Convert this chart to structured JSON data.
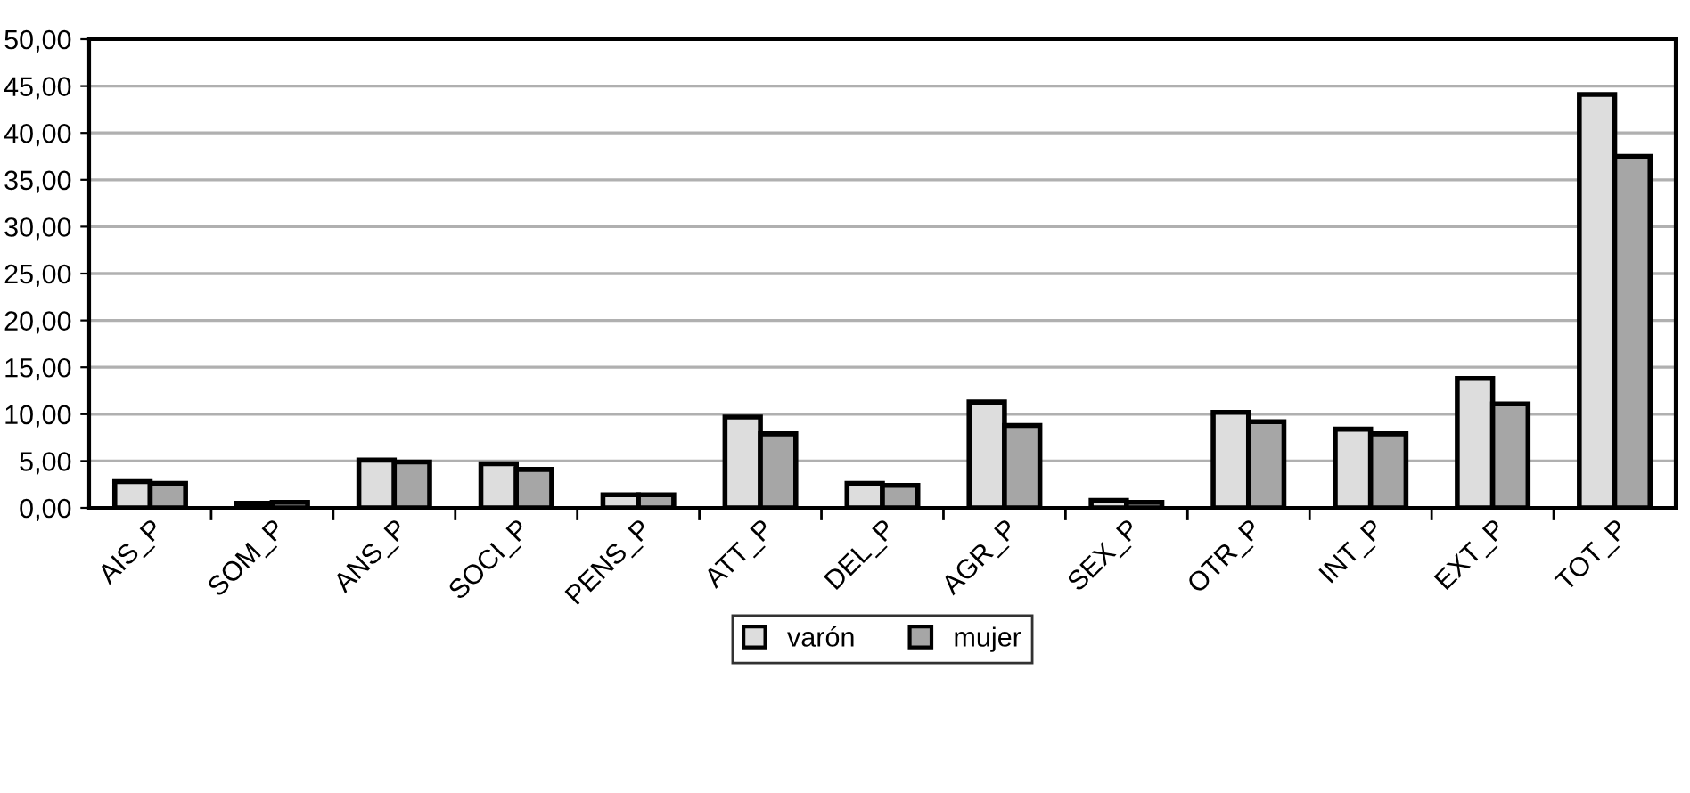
{
  "chart_data": {
    "type": "bar",
    "categories": [
      "AIS_P",
      "SOM_P",
      "ANS_P",
      "SOCI_P",
      "PENS_P",
      "ATT_P",
      "DEL_P",
      "AGR_P",
      "SEX_P",
      "OTR_P",
      "INT_P",
      "EXT_P",
      "TOT_P"
    ],
    "series": [
      {
        "name": "varón",
        "color": "#dddddd",
        "values": [
          2.8,
          0.5,
          5.1,
          4.7,
          1.4,
          9.7,
          2.6,
          11.3,
          0.8,
          10.2,
          8.4,
          13.8,
          44.1
        ]
      },
      {
        "name": "mujer",
        "color": "#a6a6a6",
        "values": [
          2.6,
          0.6,
          4.9,
          4.1,
          1.4,
          7.9,
          2.4,
          8.8,
          0.6,
          9.2,
          7.9,
          11.1,
          37.5
        ]
      }
    ],
    "ylim": [
      0,
      50
    ],
    "yticks": [
      {
        "value": 0,
        "label": "0,00"
      },
      {
        "value": 5,
        "label": "5,00"
      },
      {
        "value": 10,
        "label": "10,00"
      },
      {
        "value": 15,
        "label": "15,00"
      },
      {
        "value": 20,
        "label": "20,00"
      },
      {
        "value": 25,
        "label": "25,00"
      },
      {
        "value": 30,
        "label": "30,00"
      },
      {
        "value": 35,
        "label": "35,00"
      },
      {
        "value": 40,
        "label": "40,00"
      },
      {
        "value": 45,
        "label": "45,00"
      },
      {
        "value": 50,
        "label": "50,00"
      }
    ],
    "grid": "y",
    "legend": "bottom"
  }
}
